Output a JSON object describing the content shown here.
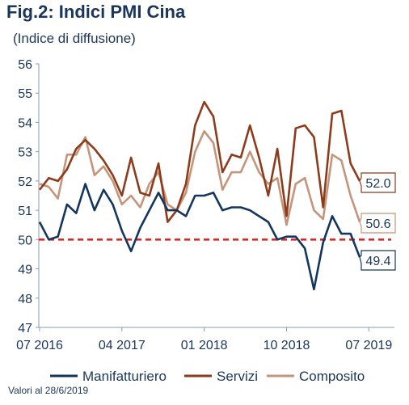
{
  "chart_data": {
    "type": "line",
    "title": "Fig.2: Indici PMI Cina",
    "subtitle": "(Indice di diffusione)",
    "note": "Valori al 28/6/2019",
    "ylim": [
      47,
      56
    ],
    "yticks": [
      47,
      48,
      49,
      50,
      51,
      52,
      53,
      54,
      55,
      56
    ],
    "xticks": [
      "07 2016",
      "04 2017",
      "01 2018",
      "10 2018",
      "07 2019"
    ],
    "reference_line": {
      "value": 50,
      "color": "#e02020",
      "style": "dashed"
    },
    "legend": {
      "position": "bottom"
    },
    "colors": {
      "Manifatturiero": "#14365e",
      "Servizi": "#8e3b1b",
      "Composito": "#c4957a"
    },
    "series": [
      {
        "name": "Manifatturiero",
        "values": [
          50.6,
          50.0,
          50.1,
          51.2,
          50.9,
          51.9,
          51.0,
          51.7,
          51.2,
          50.3,
          49.6,
          50.4,
          51.0,
          51.6,
          51.0,
          51.0,
          50.8,
          51.5,
          51.5,
          51.6,
          51.0,
          51.1,
          51.1,
          51.0,
          50.8,
          50.6,
          50.0,
          50.1,
          50.1,
          49.7,
          48.3,
          49.9,
          50.8,
          50.2,
          50.2,
          49.4
        ]
      },
      {
        "name": "Servizi",
        "values": [
          51.7,
          52.1,
          52.0,
          52.4,
          53.1,
          53.4,
          53.1,
          52.7,
          52.2,
          51.5,
          52.8,
          51.6,
          51.5,
          52.6,
          50.6,
          51.0,
          51.9,
          53.9,
          54.7,
          54.2,
          52.3,
          52.9,
          52.8,
          53.9,
          52.8,
          51.5,
          53.1,
          50.8,
          53.8,
          53.9,
          53.5,
          51.1,
          54.3,
          54.4,
          52.6,
          52.0
        ]
      },
      {
        "name": "Composito",
        "values": [
          51.9,
          51.8,
          51.4,
          52.9,
          52.9,
          53.5,
          52.2,
          52.5,
          52.0,
          51.2,
          51.5,
          51.1,
          51.9,
          52.3,
          51.2,
          51.0,
          51.6,
          53.0,
          53.7,
          53.3,
          51.7,
          52.3,
          52.3,
          53.0,
          52.3,
          51.9,
          52.1,
          50.5,
          51.9,
          52.1,
          51.0,
          50.7,
          52.9,
          52.7,
          51.5,
          50.6
        ]
      }
    ],
    "end_labels": [
      "49.4",
      "52.0",
      "50.6"
    ]
  }
}
